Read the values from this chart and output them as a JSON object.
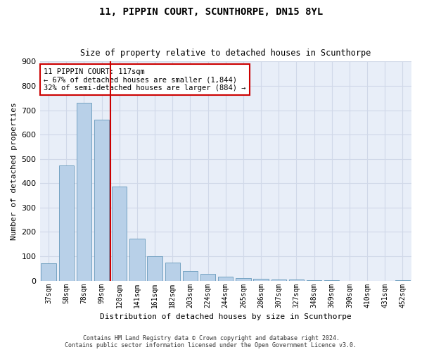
{
  "title1": "11, PIPPIN COURT, SCUNTHORPE, DN15 8YL",
  "title2": "Size of property relative to detached houses in Scunthorpe",
  "xlabel": "Distribution of detached houses by size in Scunthorpe",
  "ylabel": "Number of detached properties",
  "categories": [
    "37sqm",
    "58sqm",
    "78sqm",
    "99sqm",
    "120sqm",
    "141sqm",
    "161sqm",
    "182sqm",
    "203sqm",
    "224sqm",
    "244sqm",
    "265sqm",
    "286sqm",
    "307sqm",
    "327sqm",
    "348sqm",
    "369sqm",
    "390sqm",
    "410sqm",
    "431sqm",
    "452sqm"
  ],
  "values": [
    72,
    472,
    730,
    660,
    385,
    172,
    100,
    75,
    40,
    27,
    15,
    11,
    9,
    6,
    4,
    2,
    1,
    0,
    0,
    0,
    3
  ],
  "bar_color": "#b8d0e8",
  "bar_edge_color": "#6699bb",
  "vline_x_index": 4,
  "vline_color": "#cc0000",
  "annotation_line1": "11 PIPPIN COURT: 117sqm",
  "annotation_line2": "← 67% of detached houses are smaller (1,844)",
  "annotation_line3": "32% of semi-detached houses are larger (884) →",
  "annotation_box_color": "#ffffff",
  "annotation_box_edge": "#cc0000",
  "grid_color": "#d0d8e8",
  "background_color": "#e8eef8",
  "footer1": "Contains HM Land Registry data © Crown copyright and database right 2024.",
  "footer2": "Contains public sector information licensed under the Open Government Licence v3.0.",
  "ylim": [
    0,
    900
  ],
  "yticks": [
    0,
    100,
    200,
    300,
    400,
    500,
    600,
    700,
    800,
    900
  ]
}
